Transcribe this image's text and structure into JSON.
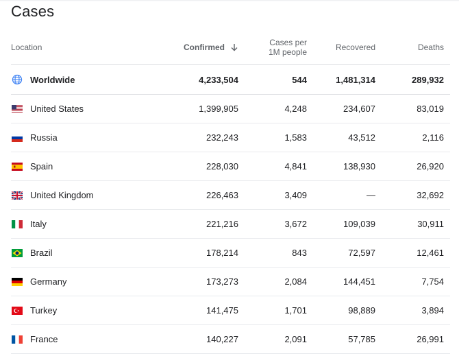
{
  "panel": {
    "title": "Cases"
  },
  "table": {
    "headers": {
      "location": "Location",
      "confirmed": "Confirmed",
      "per_million_line1": "Cases per",
      "per_million_line2": "1M people",
      "recovered": "Recovered",
      "deaths": "Deaths"
    },
    "sort_icon": "arrow-down-icon",
    "rows": [
      {
        "name": "Worldwide",
        "icon": "globe-icon",
        "confirmed": "4,233,504",
        "per_million": "544",
        "recovered": "1,481,314",
        "deaths": "289,932"
      },
      {
        "name": "United States",
        "icon": "flag-us-icon",
        "confirmed": "1,399,905",
        "per_million": "4,248",
        "recovered": "234,607",
        "deaths": "83,019"
      },
      {
        "name": "Russia",
        "icon": "flag-ru-icon",
        "confirmed": "232,243",
        "per_million": "1,583",
        "recovered": "43,512",
        "deaths": "2,116"
      },
      {
        "name": "Spain",
        "icon": "flag-es-icon",
        "confirmed": "228,030",
        "per_million": "4,841",
        "recovered": "138,930",
        "deaths": "26,920"
      },
      {
        "name": "United Kingdom",
        "icon": "flag-gb-icon",
        "confirmed": "226,463",
        "per_million": "3,409",
        "recovered": "—",
        "deaths": "32,692"
      },
      {
        "name": "Italy",
        "icon": "flag-it-icon",
        "confirmed": "221,216",
        "per_million": "3,672",
        "recovered": "109,039",
        "deaths": "30,911"
      },
      {
        "name": "Brazil",
        "icon": "flag-br-icon",
        "confirmed": "178,214",
        "per_million": "843",
        "recovered": "72,597",
        "deaths": "12,461"
      },
      {
        "name": "Germany",
        "icon": "flag-de-icon",
        "confirmed": "173,273",
        "per_million": "2,084",
        "recovered": "144,451",
        "deaths": "7,754"
      },
      {
        "name": "Turkey",
        "icon": "flag-tr-icon",
        "confirmed": "141,475",
        "per_million": "1,701",
        "recovered": "98,889",
        "deaths": "3,894"
      },
      {
        "name": "France",
        "icon": "flag-fr-icon",
        "confirmed": "140,227",
        "per_million": "2,091",
        "recovered": "57,785",
        "deaths": "26,991"
      }
    ]
  },
  "colors": {
    "text": "#202124",
    "secondary": "#5f6368",
    "divider": "#dadce0",
    "globe": "#4285f4"
  }
}
